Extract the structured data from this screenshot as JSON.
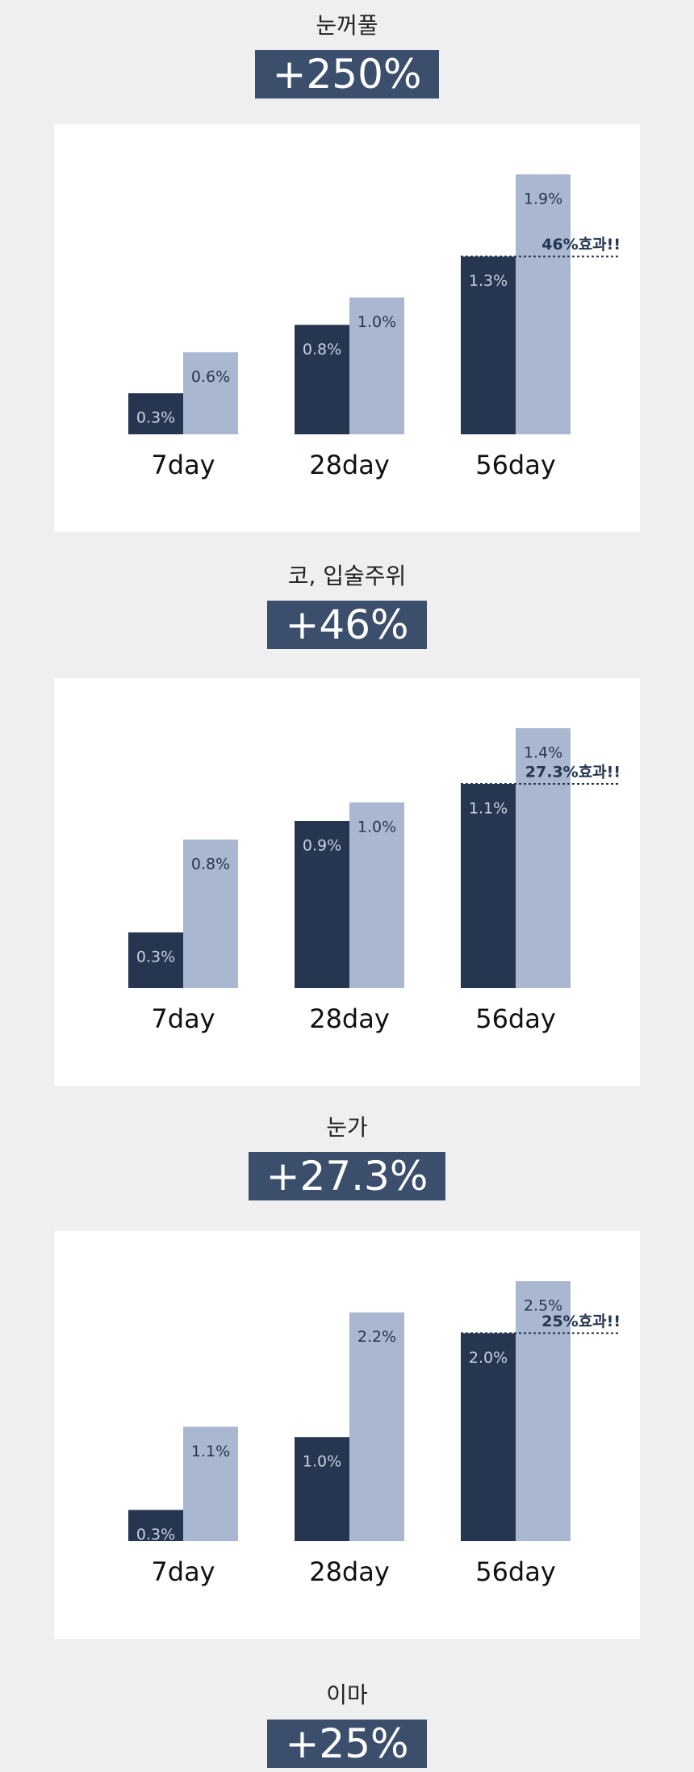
{
  "headings": [
    {
      "label": "눈꺼풀",
      "badge": "+250%"
    },
    {
      "label": "코, 입술주위",
      "badge": "+46%"
    },
    {
      "label": "눈가",
      "badge": "+27.3%"
    },
    {
      "label": "이마",
      "badge": "+25%"
    }
  ],
  "chart_data": [
    {
      "type": "bar",
      "categories": [
        "7day",
        "28day",
        "56day"
      ],
      "annotation": "46%효과!!",
      "series": [
        {
          "color": "#263650",
          "values": [
            0.3,
            0.8,
            1.3
          ],
          "value_labels": [
            "0.3%",
            "0.8%",
            "1.3%"
          ]
        },
        {
          "color": "#aab7d0",
          "values": [
            0.6,
            1.0,
            1.9
          ],
          "value_labels": [
            "0.6%",
            "1.0%",
            "1.9%"
          ]
        }
      ]
    },
    {
      "type": "bar",
      "categories": [
        "7day",
        "28day",
        "56day"
      ],
      "annotation": "27.3%효과!!",
      "series": [
        {
          "color": "#263650",
          "values": [
            0.3,
            0.9,
            1.1
          ],
          "value_labels": [
            "0.3%",
            "0.9%",
            "1.1%"
          ]
        },
        {
          "color": "#aab7d0",
          "values": [
            0.8,
            1.0,
            1.4
          ],
          "value_labels": [
            "0.8%",
            "1.0%",
            "1.4%"
          ]
        }
      ]
    },
    {
      "type": "bar",
      "categories": [
        "7day",
        "28day",
        "56day"
      ],
      "annotation": "25%효과!!",
      "series": [
        {
          "color": "#263650",
          "values": [
            0.3,
            1.0,
            2.0
          ],
          "value_labels": [
            "0.3%",
            "1.0%",
            "2.0%"
          ]
        },
        {
          "color": "#aab7d0",
          "values": [
            1.1,
            2.2,
            2.5
          ],
          "value_labels": [
            "1.1%",
            "2.2%",
            "2.5%"
          ]
        }
      ]
    }
  ]
}
